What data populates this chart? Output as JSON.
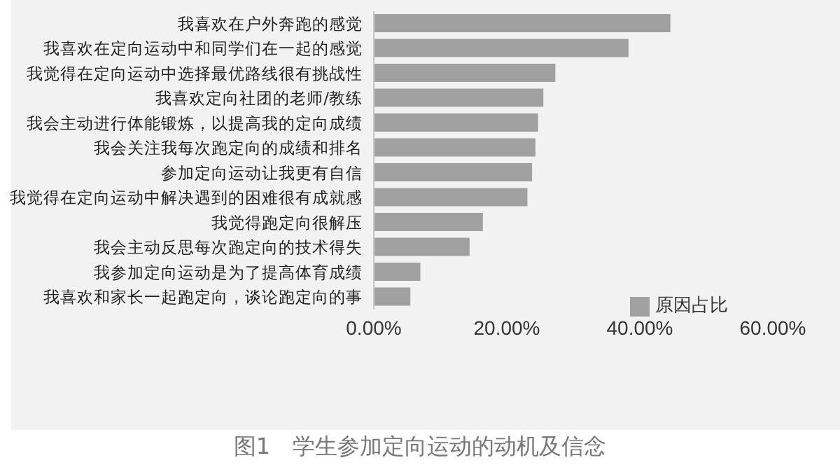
{
  "chart_data": {
    "type": "bar",
    "orientation": "horizontal",
    "categories": [
      "我喜欢在户外奔跑的感觉",
      "我喜欢在定向运动中和同学们在一起的感觉",
      "我觉得在定向运动中选择最优路线很有挑战性",
      "我喜欢定向社团的老师/教练",
      "我会主动进行体能锻炼，以提高我的定向成绩",
      "我会关注我每次跑定向的成绩和排名",
      "参加定向运动让我更有自信",
      "我觉得在定向运动中解决遇到的困难很有成就感",
      "我觉得跑定向很解压",
      "我会主动反思每次跑定向的技术得失",
      "我参加定向运动是为了提高体育成绩",
      "我喜欢和家长一起跑定向，谈论跑定向的事"
    ],
    "series": [
      {
        "name": "原因占比",
        "color": "#a0a0a0",
        "values": [
          44.6,
          38.3,
          27.3,
          25.5,
          24.7,
          24.3,
          23.8,
          23.1,
          16.4,
          14.4,
          7.0,
          5.5
        ]
      }
    ],
    "xlim": [
      0,
      60
    ],
    "xticks": [
      {
        "value": 0,
        "label": "0.00%"
      },
      {
        "value": 20,
        "label": "20.00%"
      },
      {
        "value": 40,
        "label": "40.00%"
      },
      {
        "value": 60,
        "label": "60.00%"
      }
    ],
    "legend": "bottom right",
    "grid": false,
    "annotations": [
      "图1　学生参加定向运动的动机及信念"
    ]
  }
}
